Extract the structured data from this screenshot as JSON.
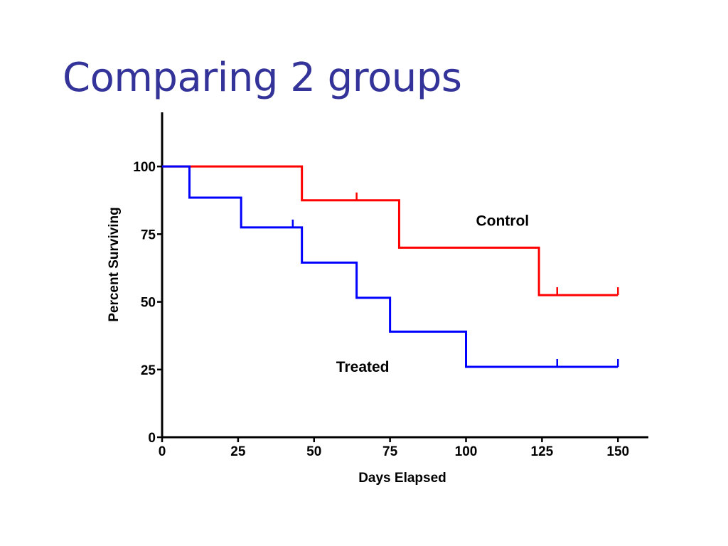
{
  "slide": {
    "title": "Comparing 2 groups"
  },
  "chart_data": {
    "type": "line",
    "step": true,
    "title": "",
    "xlabel": "Days Elapsed",
    "ylabel": "Percent Surviving",
    "xlim": [
      0,
      160
    ],
    "ylim": [
      0,
      120
    ],
    "xticks": [
      0,
      25,
      50,
      75,
      100,
      125,
      150
    ],
    "yticks": [
      0,
      25,
      50,
      75,
      100
    ],
    "grid": false,
    "legend": "none",
    "series": [
      {
        "name": "Control",
        "color": "#ff0000",
        "steps": [
          [
            0,
            100
          ],
          [
            46,
            87.5
          ],
          [
            78,
            70
          ],
          [
            124,
            52.5
          ]
        ],
        "end_x": 150,
        "censored": [
          [
            64,
            87.5
          ],
          [
            130,
            52.5
          ],
          [
            150,
            52.5
          ]
        ],
        "label_at": [
          112,
          80
        ]
      },
      {
        "name": "Treated",
        "color": "#0000ff",
        "steps": [
          [
            0,
            100
          ],
          [
            9,
            88.5
          ],
          [
            26,
            77.5
          ],
          [
            46,
            64.5
          ],
          [
            64,
            51.5
          ],
          [
            75,
            39
          ],
          [
            100,
            26
          ]
        ],
        "end_x": 150,
        "censored": [
          [
            43,
            77.5
          ],
          [
            130,
            26
          ],
          [
            150,
            26
          ]
        ],
        "label_at": [
          66,
          26
        ]
      }
    ]
  }
}
